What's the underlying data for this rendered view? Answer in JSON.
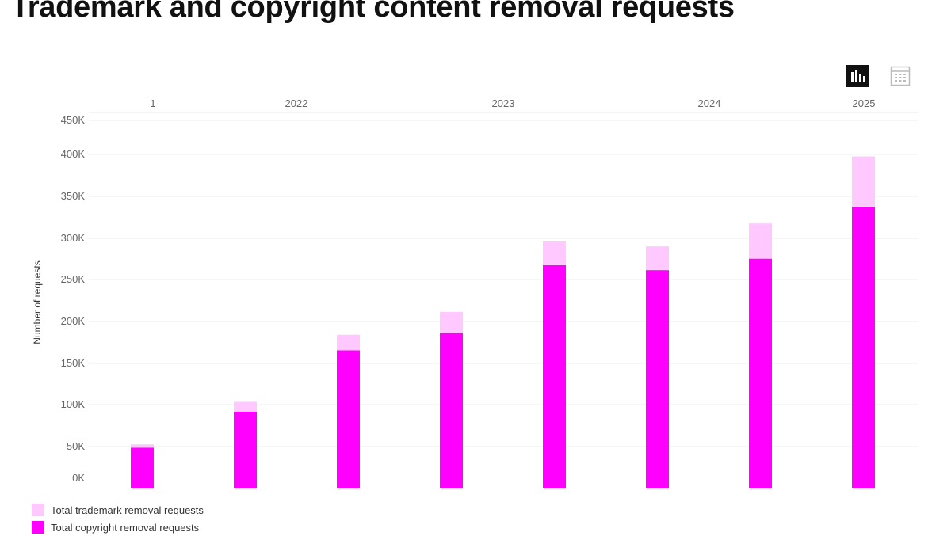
{
  "page": {
    "title": "Trademark and copyright content removal requests"
  },
  "toolbar": {
    "chart_view_icon": "bar-chart-icon",
    "table_view_icon": "table-icon",
    "active_view": "chart"
  },
  "chart_data": {
    "type": "bar",
    "stacked": true,
    "title": "Trademark and copyright content removal requests",
    "ylabel": "Number of requests",
    "xlabel": "",
    "ylim": [
      0,
      450000
    ],
    "yticks": [
      0,
      50000,
      100000,
      150000,
      200000,
      250000,
      300000,
      350000,
      400000,
      450000
    ],
    "ytick_labels": [
      "0K",
      "50K",
      "100K",
      "150K",
      "200K",
      "250K",
      "300K",
      "350K",
      "400K",
      "450K"
    ],
    "period_labels": [
      "1",
      "2022",
      "2023",
      "2024",
      "2025"
    ],
    "grid": true,
    "legend_position": "bottom-left",
    "series": [
      {
        "name": "Total copyright removal requests",
        "color": "#ff00ff",
        "values": [
          50000,
          94000,
          169000,
          190000,
          273000,
          267000,
          281000,
          344000
        ]
      },
      {
        "name": "Total trademark removal requests",
        "color": "#ffc8ff",
        "values": [
          4000,
          12000,
          19000,
          26000,
          29000,
          29000,
          43000,
          62000
        ]
      }
    ]
  }
}
